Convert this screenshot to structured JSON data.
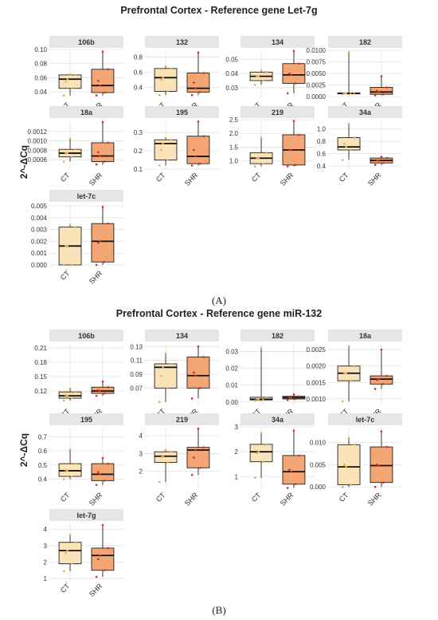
{
  "colors": {
    "ct": "#fbe3b8",
    "shr": "#f4a574",
    "strip": "#e6e6e6",
    "grid": "#e1e1e1",
    "dot_ct": "#e8a94c",
    "dot_shr": "#c8321e"
  },
  "ylabel": "2^-ΔCq",
  "panelA": {
    "title": "Prefrontal Cortex - Reference gene Let-7g",
    "label": "(A)"
  },
  "panelB": {
    "title": "Prefrontal Cortex - Reference gene miR-132",
    "label": "(B)"
  },
  "chart_data": [
    {
      "type": "box",
      "panel": "A",
      "name": "106b",
      "categories": [
        "CT",
        "SHR"
      ],
      "ylim": [
        0.03,
        0.1
      ],
      "yticks": [
        "0.04",
        "0.06",
        "0.08",
        "0.10"
      ],
      "boxes": [
        {
          "q1": 0.045,
          "median": 0.058,
          "q3": 0.064,
          "whisker_low": 0.035,
          "whisker_high": 0.065
        },
        {
          "q1": 0.039,
          "median": 0.049,
          "q3": 0.072,
          "whisker_low": 0.035,
          "whisker_high": 0.097
        }
      ]
    },
    {
      "type": "box",
      "panel": "A",
      "name": "132",
      "categories": [
        "CT",
        "SHR"
      ],
      "ylim": [
        0.25,
        0.9
      ],
      "yticks": [
        "0.4",
        "0.6",
        "0.8"
      ],
      "boxes": [
        {
          "q1": 0.35,
          "median": 0.53,
          "q3": 0.65,
          "whisker_low": 0.3,
          "whisker_high": 0.68
        },
        {
          "q1": 0.34,
          "median": 0.39,
          "q3": 0.59,
          "whisker_low": 0.3,
          "whisker_high": 0.86
        }
      ]
    },
    {
      "type": "box",
      "panel": "A",
      "name": "134",
      "categories": [
        "CT",
        "SHR"
      ],
      "ylim": [
        0.022,
        0.057
      ],
      "yticks": [
        "0.03",
        "0.04",
        "0.05"
      ],
      "boxes": [
        {
          "q1": 0.035,
          "median": 0.038,
          "q3": 0.041,
          "whisker_low": 0.032,
          "whisker_high": 0.042
        },
        {
          "q1": 0.033,
          "median": 0.039,
          "q3": 0.047,
          "whisker_low": 0.026,
          "whisker_high": 0.056
        }
      ]
    },
    {
      "type": "box",
      "panel": "A",
      "name": "182",
      "categories": [
        "CT",
        "SHR"
      ],
      "ylim": [
        -0.0005,
        0.0102
      ],
      "yticks": [
        "0.0000",
        "0.0025",
        "0.0050",
        "0.0075",
        "0.0100"
      ],
      "boxes": [
        {
          "q1": 0.0006,
          "median": 0.0007,
          "q3": 0.0008,
          "whisker_low": 0.0005,
          "whisker_high": 0.0096
        },
        {
          "q1": 0.0005,
          "median": 0.001,
          "q3": 0.002,
          "whisker_low": 0.0003,
          "whisker_high": 0.0044
        }
      ]
    },
    {
      "type": "box",
      "panel": "A",
      "name": "18a",
      "categories": [
        "CT",
        "SHR"
      ],
      "ylim": [
        0.0004,
        0.00145
      ],
      "yticks": [
        "0.0006",
        "0.0008",
        "0.0010",
        "0.0012"
      ],
      "boxes": [
        {
          "q1": 0.00066,
          "median": 0.00074,
          "q3": 0.00082,
          "whisker_low": 0.00056,
          "whisker_high": 0.00105
        },
        {
          "q1": 0.00056,
          "median": 0.00068,
          "q3": 0.00096,
          "whisker_low": 0.0005,
          "whisker_high": 0.0014
        }
      ]
    },
    {
      "type": "box",
      "panel": "A",
      "name": "195",
      "categories": [
        "CT",
        "SHR"
      ],
      "ylim": [
        0.1,
        0.37
      ],
      "yticks": [
        "0.1",
        "0.2",
        "0.3"
      ],
      "boxes": [
        {
          "q1": 0.15,
          "median": 0.24,
          "q3": 0.26,
          "whisker_low": 0.12,
          "whisker_high": 0.27
        },
        {
          "q1": 0.13,
          "median": 0.17,
          "q3": 0.28,
          "whisker_low": 0.12,
          "whisker_high": 0.36
        }
      ]
    },
    {
      "type": "box",
      "panel": "A",
      "name": "219",
      "categories": [
        "CT",
        "SHR"
      ],
      "ylim": [
        0.7,
        2.5
      ],
      "yticks": [
        "1.0",
        "1.5",
        "2.0",
        "2.5"
      ],
      "boxes": [
        {
          "q1": 0.9,
          "median": 1.1,
          "q3": 1.3,
          "whisker_low": 0.8,
          "whisker_high": 1.85
        },
        {
          "q1": 0.85,
          "median": 1.4,
          "q3": 1.95,
          "whisker_low": 0.8,
          "whisker_high": 2.45
        }
      ]
    },
    {
      "type": "box",
      "panel": "A",
      "name": "34a",
      "categories": [
        "CT",
        "SHR"
      ],
      "ylim": [
        0.35,
        1.15
      ],
      "yticks": [
        "0.4",
        "0.6",
        "0.8",
        "1.0"
      ],
      "boxes": [
        {
          "q1": 0.66,
          "median": 0.71,
          "q3": 0.86,
          "whisker_low": 0.5,
          "whisker_high": 1.08
        },
        {
          "q1": 0.45,
          "median": 0.49,
          "q3": 0.53,
          "whisker_low": 0.42,
          "whisker_high": 0.55
        }
      ]
    },
    {
      "type": "box",
      "panel": "A",
      "name": "let-7c",
      "categories": [
        "CT",
        "SHR"
      ],
      "ylim": [
        -0.0002,
        0.0052
      ],
      "yticks": [
        "0.000",
        "0.001",
        "0.002",
        "0.003",
        "0.004",
        "0.005"
      ],
      "boxes": [
        {
          "q1": 0.0,
          "median": 0.0016,
          "q3": 0.0032,
          "whisker_low": 0.0,
          "whisker_high": 0.0034
        },
        {
          "q1": 0.00025,
          "median": 0.002,
          "q3": 0.0035,
          "whisker_low": 0.0,
          "whisker_high": 0.0049
        }
      ]
    },
    {
      "type": "box",
      "panel": "B",
      "name": "106b",
      "categories": [
        "CT",
        "SHR"
      ],
      "ylim": [
        0.09,
        0.22
      ],
      "yticks": [
        "0.12",
        "0.15",
        "0.18",
        "0.21"
      ],
      "boxes": [
        {
          "q1": 0.105,
          "median": 0.11,
          "q3": 0.118,
          "whisker_low": 0.1,
          "whisker_high": 0.125
        },
        {
          "q1": 0.115,
          "median": 0.12,
          "q3": 0.128,
          "whisker_low": 0.11,
          "whisker_high": 0.14
        }
      ]
    },
    {
      "type": "box",
      "panel": "B",
      "name": "134",
      "categories": [
        "CT",
        "SHR"
      ],
      "ylim": [
        0.045,
        0.135
      ],
      "yticks": [
        "0.07",
        "0.09",
        "0.11",
        "0.13"
      ],
      "boxes": [
        {
          "q1": 0.07,
          "median": 0.1,
          "q3": 0.105,
          "whisker_low": 0.05,
          "whisker_high": 0.12
        },
        {
          "q1": 0.07,
          "median": 0.088,
          "q3": 0.115,
          "whisker_low": 0.055,
          "whisker_high": 0.13
        }
      ]
    },
    {
      "type": "box",
      "panel": "B",
      "name": "182",
      "categories": [
        "CT",
        "SHR"
      ],
      "ylim": [
        -0.002,
        0.035
      ],
      "yticks": [
        "0.00",
        "0.01",
        "0.02",
        "0.03"
      ],
      "boxes": [
        {
          "q1": 0.0012,
          "median": 0.0016,
          "q3": 0.0028,
          "whisker_low": 0.0008,
          "whisker_high": 0.032
        },
        {
          "q1": 0.0018,
          "median": 0.0026,
          "q3": 0.0034,
          "whisker_low": 0.0012,
          "whisker_high": 0.0045
        }
      ]
    },
    {
      "type": "box",
      "panel": "B",
      "name": "18a",
      "categories": [
        "CT",
        "SHR"
      ],
      "ylim": [
        0.0008,
        0.0027
      ],
      "yticks": [
        "0.0010",
        "0.0015",
        "0.0020",
        "0.0025"
      ],
      "boxes": [
        {
          "q1": 0.00155,
          "median": 0.00178,
          "q3": 0.002,
          "whisker_low": 0.00092,
          "whisker_high": 0.0026
        },
        {
          "q1": 0.00145,
          "median": 0.0016,
          "q3": 0.0017,
          "whisker_low": 0.0013,
          "whisker_high": 0.0025
        }
      ]
    },
    {
      "type": "box",
      "panel": "B",
      "name": "195",
      "categories": [
        "CT",
        "SHR"
      ],
      "ylim": [
        0.33,
        0.77
      ],
      "yticks": [
        "0.4",
        "0.5",
        "0.6",
        "0.7"
      ],
      "boxes": [
        {
          "q1": 0.42,
          "median": 0.46,
          "q3": 0.51,
          "whisker_low": 0.4,
          "whisker_high": 0.61
        },
        {
          "q1": 0.39,
          "median": 0.435,
          "q3": 0.51,
          "whisker_low": 0.36,
          "whisker_high": 0.55
        }
      ]
    },
    {
      "type": "box",
      "panel": "B",
      "name": "219",
      "categories": [
        "CT",
        "SHR"
      ],
      "ylim": [
        1.0,
        4.5
      ],
      "yticks": [
        "2",
        "3",
        "4"
      ],
      "boxes": [
        {
          "q1": 2.5,
          "median": 2.85,
          "q3": 3.1,
          "whisker_low": 1.4,
          "whisker_high": 3.2
        },
        {
          "q1": 2.2,
          "median": 3.2,
          "q3": 3.35,
          "whisker_low": 1.8,
          "whisker_high": 4.4
        }
      ]
    },
    {
      "type": "box",
      "panel": "B",
      "name": "34a",
      "categories": [
        "CT",
        "SHR"
      ],
      "ylim": [
        0.5,
        3.0
      ],
      "yticks": [
        "1",
        "2",
        "3"
      ],
      "boxes": [
        {
          "q1": 1.6,
          "median": 2.0,
          "q3": 2.3,
          "whisker_low": 0.95,
          "whisker_high": 2.75
        },
        {
          "q1": 0.7,
          "median": 1.2,
          "q3": 1.85,
          "whisker_low": 0.55,
          "whisker_high": 2.85
        }
      ]
    },
    {
      "type": "box",
      "panel": "B",
      "name": "let-7c",
      "categories": [
        "CT",
        "SHR"
      ],
      "ylim": [
        -0.0005,
        0.0135
      ],
      "yticks": [
        "0.000",
        "0.005",
        "0.010"
      ],
      "boxes": [
        {
          "q1": 0.0005,
          "median": 0.0045,
          "q3": 0.0095,
          "whisker_low": 0.0,
          "whisker_high": 0.011
        },
        {
          "q1": 0.001,
          "median": 0.0048,
          "q3": 0.009,
          "whisker_low": 0.0,
          "whisker_high": 0.0125
        }
      ]
    },
    {
      "type": "box",
      "panel": "B",
      "name": "let-7g",
      "categories": [
        "CT",
        "SHR"
      ],
      "ylim": [
        0.9,
        4.4
      ],
      "yticks": [
        "1",
        "2",
        "3",
        "4"
      ],
      "boxes": [
        {
          "q1": 1.9,
          "median": 2.7,
          "q3": 3.2,
          "whisker_low": 1.45,
          "whisker_high": 3.65
        },
        {
          "q1": 1.5,
          "median": 2.4,
          "q3": 2.85,
          "whisker_low": 1.1,
          "whisker_high": 4.25
        }
      ]
    }
  ]
}
